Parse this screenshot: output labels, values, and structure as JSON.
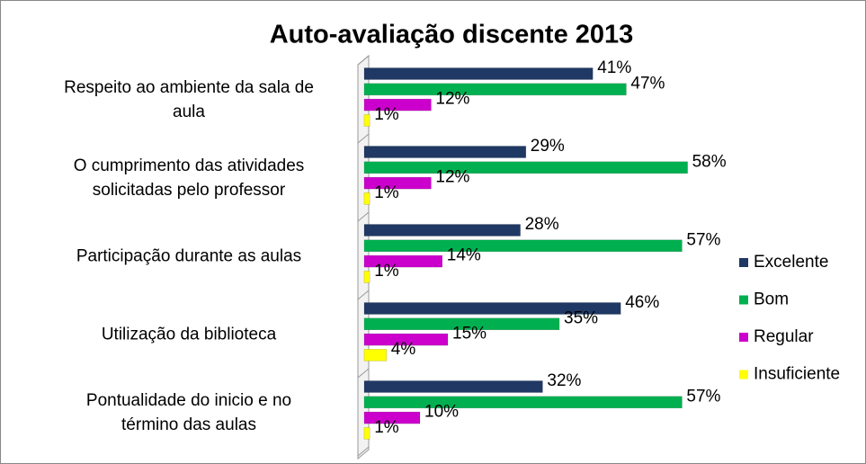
{
  "chart_data": {
    "type": "bar",
    "orientation": "horizontal",
    "title": "Auto-avaliação discente 2013",
    "categories": [
      "Respeito ao ambiente da sala de\naula",
      "O cumprimento das atividades\nsolicitadas pelo professor",
      "Participação durante as aulas",
      "Utilização da biblioteca",
      "Pontualidade do inicio e no\ntérmino das aulas"
    ],
    "series": [
      {
        "name": "Excelente",
        "color": "#1f3864",
        "values": [
          41,
          29,
          28,
          46,
          32
        ],
        "value_labels": [
          "41%",
          "29%",
          "28%",
          "46%",
          "32%"
        ]
      },
      {
        "name": "Bom",
        "color": "#00b050",
        "values": [
          47,
          58,
          57,
          35,
          57
        ],
        "value_labels": [
          "47%",
          "58%",
          "57%",
          "35%",
          "57%"
        ]
      },
      {
        "name": "Regular",
        "color": "#cc00cc",
        "values": [
          12,
          12,
          14,
          15,
          10
        ],
        "value_labels": [
          "12%",
          "12%",
          "14%",
          "15%",
          "10%"
        ]
      },
      {
        "name": "Insuficiente",
        "color": "#ffff00",
        "values": [
          1,
          1,
          1,
          4,
          1
        ],
        "value_labels": [
          "1%",
          "1%",
          "1%",
          "4%",
          "1%"
        ]
      }
    ],
    "xlim": [
      0,
      60
    ],
    "legend": "right"
  }
}
